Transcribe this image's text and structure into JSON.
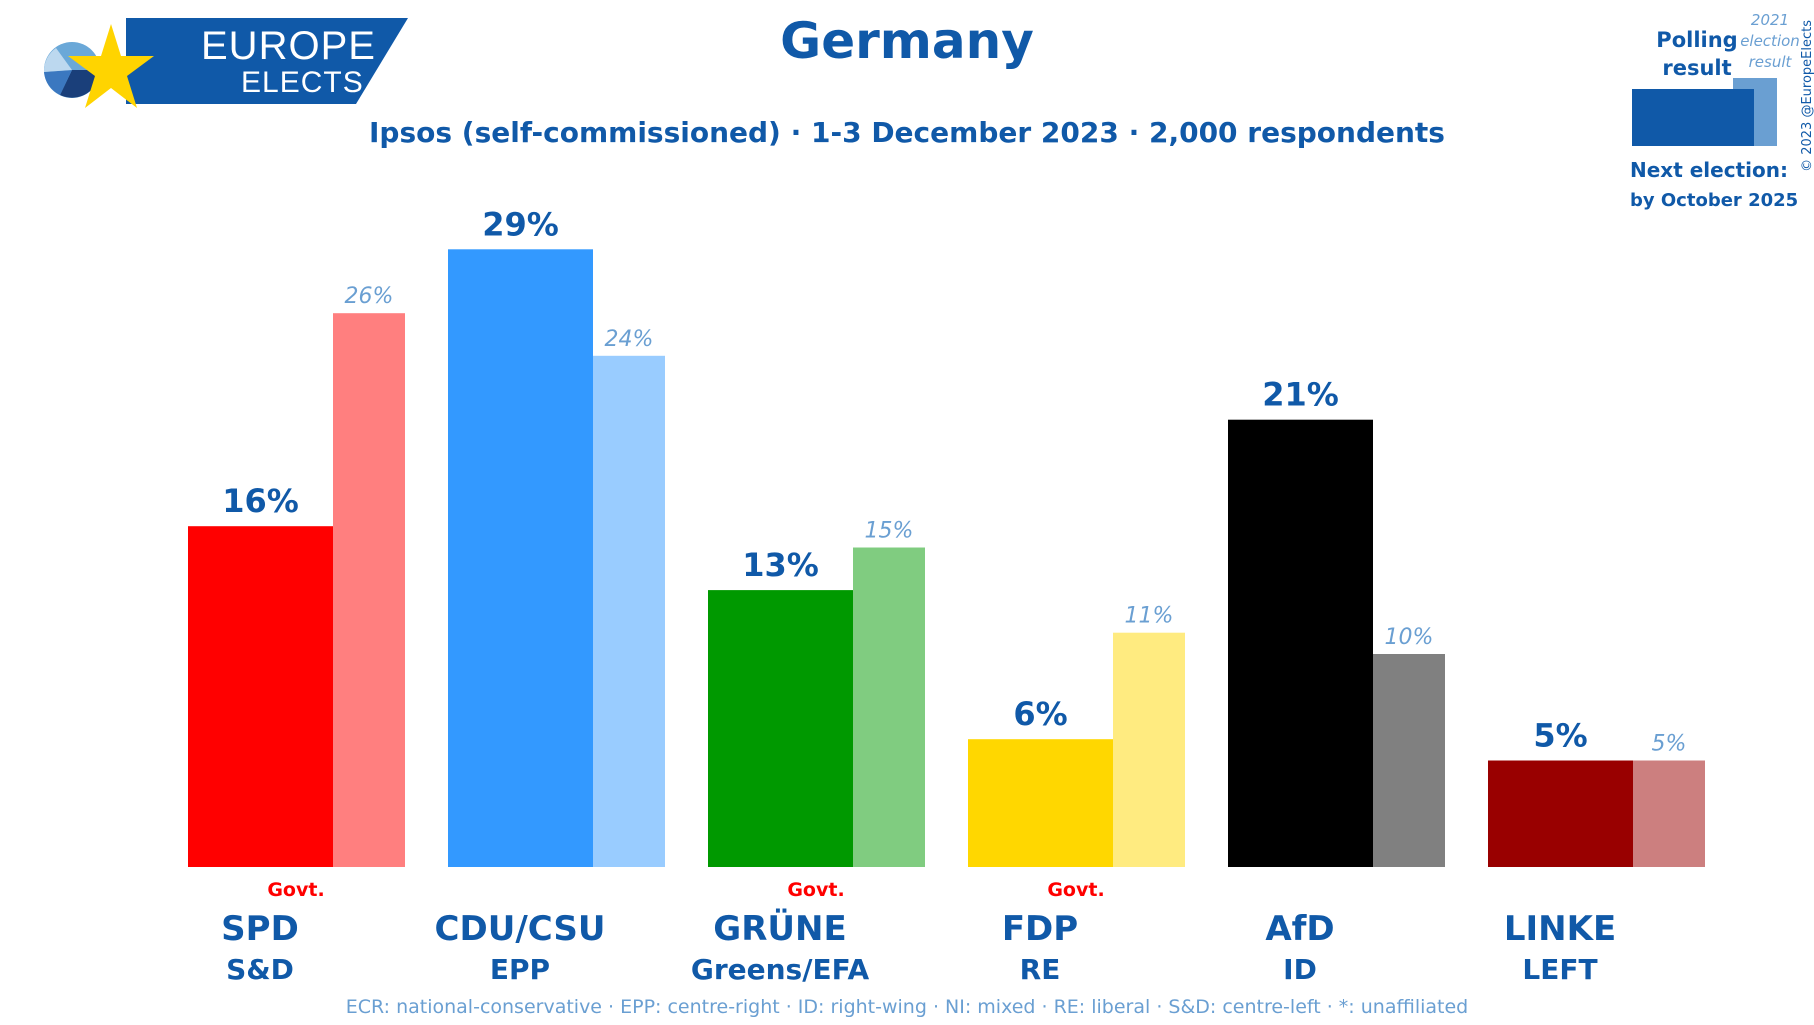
{
  "header": {
    "logo_top": "EUROPE",
    "logo_bottom": "ELECTS",
    "title": "Germany",
    "subtitle": "Ipsos (self-commissioned) · 1-3 December 2023 · 2,000 respondents"
  },
  "legend": {
    "polling_label": "Polling result",
    "previous_label": "2021 election result",
    "next_election_label": "Next election:",
    "next_election_date": "by October 2025",
    "copyright": "© 2023 @EuropeElects"
  },
  "footer": "ECR: national-conservative · EPP: centre-right · ID: right-wing · NI: mixed · RE: liberal · S&D: centre-left · *: unaffiliated",
  "colors": {
    "brand": "#1059a8",
    "secondary_text": "#6a9fd2",
    "govt": "#ff0000"
  },
  "chart_data": {
    "type": "bar",
    "title": "Germany",
    "categories": [
      "SPD",
      "CDU/CSU",
      "GRÜNE",
      "FDP",
      "AfD",
      "LINKE"
    ],
    "groups": [
      "S&D",
      "EPP",
      "Greens/EFA",
      "RE",
      "ID",
      "LEFT"
    ],
    "govt": [
      true,
      false,
      true,
      true,
      false,
      false
    ],
    "govt_label": "Govt.",
    "series": [
      {
        "name": "Polling result",
        "values": [
          16,
          29,
          13,
          6,
          21,
          5
        ],
        "labels": [
          "16%",
          "29%",
          "13%",
          "6%",
          "21%",
          "5%"
        ]
      },
      {
        "name": "2021 election result",
        "values": [
          26,
          24,
          15,
          11,
          10,
          5
        ],
        "labels": [
          "26%",
          "24%",
          "15%",
          "11%",
          "10%",
          "5%"
        ]
      }
    ],
    "colors": [
      "#ff0000",
      "#3399ff",
      "#009900",
      "#ffd700",
      "#000000",
      "#990000"
    ],
    "previous_colors": [
      "#ff7f7f",
      "#99ccff",
      "#80cc80",
      "#ffeb80",
      "#808080",
      "#cc7f7f"
    ],
    "ylim": [
      0,
      30
    ]
  }
}
